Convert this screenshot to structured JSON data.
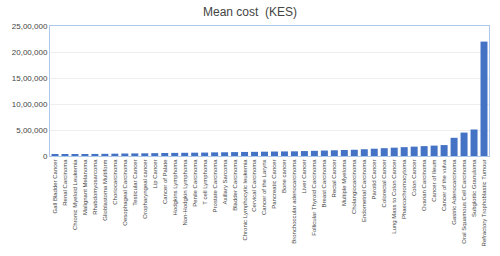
{
  "chart_data": {
    "type": "bar",
    "title": "Mean cost  (KES)",
    "categories": [
      "Gall Bladder Cancer",
      "Renal Carcinoma",
      "Chronic Myeloid Leukemia",
      "Malignant Melanoma",
      "Rhabdomyosarcoma",
      "Glioblastoma Multiform",
      "Choriocarcinoma",
      "Oesophageal Carcinoma",
      "Testicular Cancer",
      "Oropharyngeal cancer",
      "Lip Cancer",
      "Cancer of Palate",
      "Hodgkins Lymphoma",
      "Non-Hodgkin Lymphoma",
      "Penile Carcinoma",
      "T cell Lymphoma",
      "Prostate Carcinoma",
      "Axillary Sarcoma",
      "Bladder Carcinoma",
      "Chronic Lymphocytic leukemia",
      "Cervical Carcinoma",
      "Cancer of the Larynx",
      "Pancreatic Cancer",
      "Bone cancer",
      "Bronchoccular adenocarcinoma",
      "Liver Cancer",
      "Follicular Thyroid Carcinoma",
      "Breast Carcinoma",
      "Rectal Cancer",
      "Multiple Myeloma",
      "Cholangiocarcinoma",
      "Endometrial Carcinoma",
      "Parotid Cancer",
      "Colorectal Cancer",
      "Lung Mass to Colon Cancer",
      "Phaecochromocytoma",
      "Colon Cancer",
      "Ovarian Carcinoma",
      "Cancer of Ileum",
      "Cancer of the vulva",
      "Gastric Adenocarcinoma",
      "Oral Squamous Cell Carcinoma",
      "Subglottic Granuloma",
      "Refractory Trophoblastic Tumour"
    ],
    "values": [
      20000,
      30000,
      35000,
      38000,
      40000,
      42000,
      45000,
      48000,
      50000,
      52000,
      55000,
      58000,
      60000,
      62000,
      64000,
      66000,
      70000,
      72000,
      75000,
      78000,
      80000,
      83000,
      86000,
      88000,
      90000,
      95000,
      100000,
      105000,
      110000,
      115000,
      120000,
      130000,
      140000,
      150000,
      160000,
      170000,
      180000,
      190000,
      200000,
      210000,
      350000,
      450000,
      510000,
      2200000
    ],
    "color": "#4472C4",
    "ylim": [
      0,
      2500000
    ],
    "yticks": [
      0,
      {
        "value": 500000,
        "label": "5,00,000"
      },
      {
        "value": 1000000,
        "label": "10,00,000"
      },
      {
        "value": 1500000,
        "label": "15,00,000"
      },
      {
        "value": 2000000,
        "label": "20,00,000"
      },
      {
        "value": 2500000,
        "label": "25,00,000"
      }
    ],
    "grid": true
  }
}
